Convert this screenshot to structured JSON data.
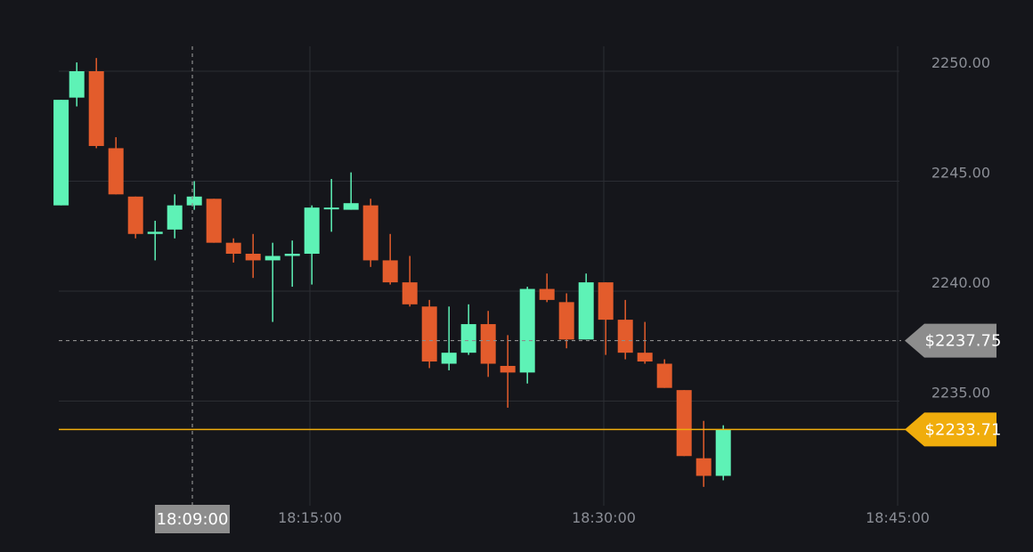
{
  "chart_data": {
    "type": "candlestick",
    "colors": {
      "up": "#5ef2b6",
      "down": "#e35c2c",
      "background": "#15161b",
      "grid": "#2b2d33",
      "current": "#f0ad0c",
      "crosshair": "#8d8d8d"
    },
    "ylim": [
      2230.9,
      2251.8
    ],
    "y_ticks": [
      {
        "value": 2250,
        "label": "2250.00"
      },
      {
        "value": 2245,
        "label": "2245.00"
      },
      {
        "value": 2240,
        "label": "2240.00"
      },
      {
        "value": 2235,
        "label": "2235.00"
      }
    ],
    "x_ticks": [
      {
        "minute": 15,
        "label": "18:15:00"
      },
      {
        "minute": 30,
        "label": "18:30:00"
      },
      {
        "minute": 45,
        "label": "18:45:00"
      }
    ],
    "crosshair": {
      "minute": 9,
      "price": 2237.75,
      "time_label": "18:09:00",
      "price_label": "$2237.75"
    },
    "current_price": {
      "price": 2233.71,
      "label": "$2233.71"
    },
    "candles": [
      {
        "minute": 2.3,
        "open": 2243.9,
        "high": 2248.7,
        "low": 2243.9,
        "close": 2248.7
      },
      {
        "minute": 3.1,
        "open": 2248.8,
        "high": 2250.4,
        "low": 2248.4,
        "close": 2250.0
      },
      {
        "minute": 4.1,
        "open": 2250.0,
        "high": 2250.6,
        "low": 2246.5,
        "close": 2246.6
      },
      {
        "minute": 5.1,
        "open": 2246.5,
        "high": 2247.0,
        "low": 2244.4,
        "close": 2244.4
      },
      {
        "minute": 6.1,
        "open": 2244.3,
        "high": 2244.3,
        "low": 2242.4,
        "close": 2242.6
      },
      {
        "minute": 7.1,
        "open": 2242.6,
        "high": 2243.2,
        "low": 2241.4,
        "close": 2242.7
      },
      {
        "minute": 8.1,
        "open": 2242.8,
        "high": 2244.4,
        "low": 2242.4,
        "close": 2243.9
      },
      {
        "minute": 9.1,
        "open": 2243.9,
        "high": 2245.0,
        "low": 2243.7,
        "close": 2244.3
      },
      {
        "minute": 10.1,
        "open": 2244.2,
        "high": 2244.2,
        "low": 2242.2,
        "close": 2242.2
      },
      {
        "minute": 11.1,
        "open": 2242.2,
        "high": 2242.4,
        "low": 2241.3,
        "close": 2241.7
      },
      {
        "minute": 12.1,
        "open": 2241.7,
        "high": 2242.6,
        "low": 2240.6,
        "close": 2241.4
      },
      {
        "minute": 13.1,
        "open": 2241.4,
        "high": 2242.2,
        "low": 2238.6,
        "close": 2241.6
      },
      {
        "minute": 14.1,
        "open": 2241.6,
        "high": 2242.3,
        "low": 2240.2,
        "close": 2241.7
      },
      {
        "minute": 15.1,
        "open": 2241.7,
        "high": 2243.9,
        "low": 2240.3,
        "close": 2243.8
      },
      {
        "minute": 16.1,
        "open": 2243.8,
        "high": 2245.1,
        "low": 2242.7,
        "close": 2243.8
      },
      {
        "minute": 17.1,
        "open": 2243.7,
        "high": 2245.4,
        "low": 2243.7,
        "close": 2244.0
      },
      {
        "minute": 18.1,
        "open": 2243.9,
        "high": 2244.2,
        "low": 2241.1,
        "close": 2241.4
      },
      {
        "minute": 19.1,
        "open": 2241.4,
        "high": 2242.6,
        "low": 2240.3,
        "close": 2240.4
      },
      {
        "minute": 20.1,
        "open": 2240.4,
        "high": 2241.6,
        "low": 2239.3,
        "close": 2239.4
      },
      {
        "minute": 21.1,
        "open": 2239.3,
        "high": 2239.6,
        "low": 2236.5,
        "close": 2236.8
      },
      {
        "minute": 22.1,
        "open": 2236.7,
        "high": 2239.3,
        "low": 2236.4,
        "close": 2237.2
      },
      {
        "minute": 23.1,
        "open": 2237.2,
        "high": 2239.4,
        "low": 2237.1,
        "close": 2238.5
      },
      {
        "minute": 24.1,
        "open": 2238.5,
        "high": 2239.1,
        "low": 2236.1,
        "close": 2236.7
      },
      {
        "minute": 25.1,
        "open": 2236.6,
        "high": 2238.0,
        "low": 2234.7,
        "close": 2236.3
      },
      {
        "minute": 26.1,
        "open": 2236.3,
        "high": 2240.2,
        "low": 2235.8,
        "close": 2240.1
      },
      {
        "minute": 27.1,
        "open": 2240.1,
        "high": 2240.8,
        "low": 2239.5,
        "close": 2239.6
      },
      {
        "minute": 28.1,
        "open": 2239.5,
        "high": 2239.9,
        "low": 2237.4,
        "close": 2237.8
      },
      {
        "minute": 29.1,
        "open": 2237.8,
        "high": 2240.8,
        "low": 2237.8,
        "close": 2240.4
      },
      {
        "minute": 30.1,
        "open": 2240.4,
        "high": 2240.4,
        "low": 2237.1,
        "close": 2238.7
      },
      {
        "minute": 31.1,
        "open": 2238.7,
        "high": 2239.6,
        "low": 2236.9,
        "close": 2237.2
      },
      {
        "minute": 32.1,
        "open": 2237.2,
        "high": 2238.6,
        "low": 2236.7,
        "close": 2236.8
      },
      {
        "minute": 33.1,
        "open": 2236.7,
        "high": 2236.9,
        "low": 2235.6,
        "close": 2235.6
      },
      {
        "minute": 34.1,
        "open": 2235.5,
        "high": 2235.5,
        "low": 2232.5,
        "close": 2232.5
      },
      {
        "minute": 35.1,
        "open": 2232.4,
        "high": 2234.1,
        "low": 2231.1,
        "close": 2231.6
      },
      {
        "minute": 36.1,
        "open": 2231.6,
        "high": 2233.9,
        "low": 2231.4,
        "close": 2233.7
      }
    ]
  }
}
